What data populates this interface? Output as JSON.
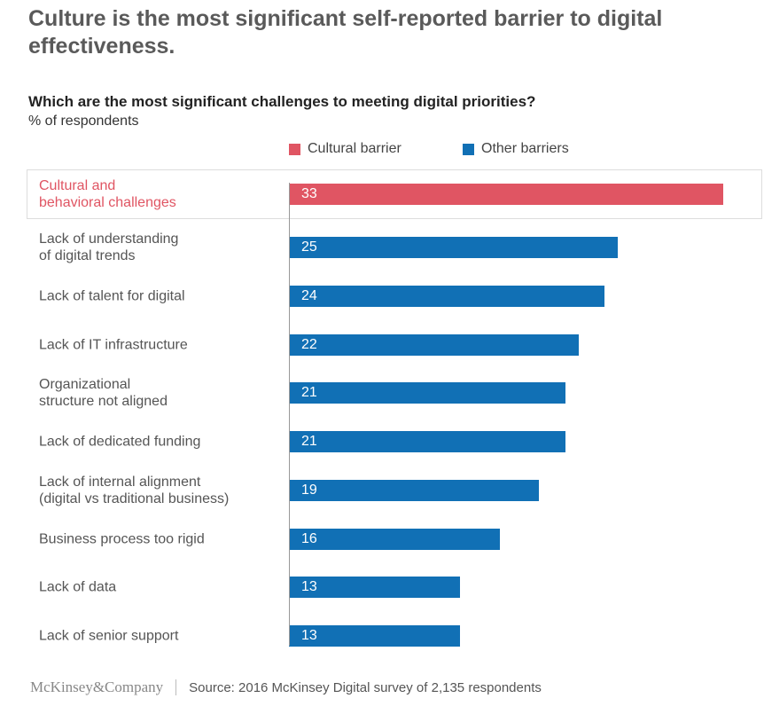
{
  "title": "Culture is the most significant self-reported barrier to digital effectiveness.",
  "chart_data": {
    "type": "bar",
    "orientation": "horizontal",
    "title": "Which are the most significant challenges to meeting digital priorities?",
    "ylabel": "% of respondents",
    "xlim": [
      0,
      33
    ],
    "legend": [
      {
        "name": "Cultural barrier",
        "color": "#e05563"
      },
      {
        "name": "Other barriers",
        "color": "#1170b5"
      }
    ],
    "categories": [
      "Cultural and\nbehavioral challenges",
      "Lack of understanding\nof digital trends",
      "Lack of talent for digital",
      "Lack of IT infrastructure",
      "Organizational\nstructure not aligned",
      "Lack of dedicated funding",
      "Lack of internal alignment\n(digital vs traditional business)",
      "Business process too rigid",
      "Lack of data",
      "Lack of senior support"
    ],
    "values": [
      33,
      25,
      24,
      22,
      21,
      21,
      19,
      16,
      13,
      13
    ],
    "series_of": [
      "Cultural barrier",
      "Other barriers",
      "Other barriers",
      "Other barriers",
      "Other barriers",
      "Other barriers",
      "Other barriers",
      "Other barriers",
      "Other barriers",
      "Other barriers"
    ]
  },
  "footer": {
    "logo": "McKinsey&Company",
    "source": "Source: 2016 McKinsey Digital survey of 2,135 respondents"
  }
}
